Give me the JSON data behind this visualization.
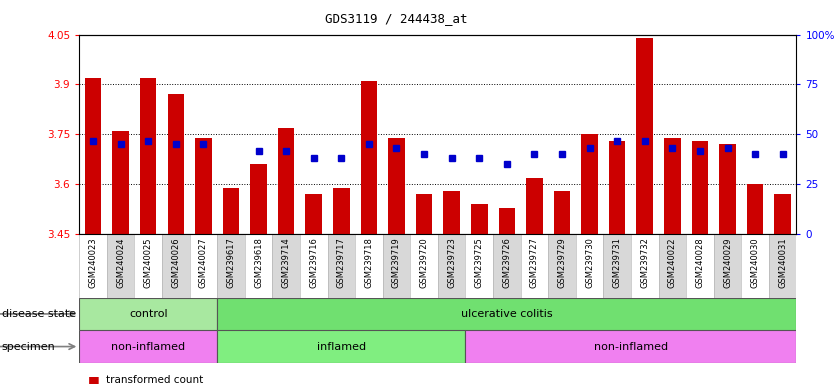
{
  "title": "GDS3119 / 244438_at",
  "samples": [
    "GSM240023",
    "GSM240024",
    "GSM240025",
    "GSM240026",
    "GSM240027",
    "GSM239617",
    "GSM239618",
    "GSM239714",
    "GSM239716",
    "GSM239717",
    "GSM239718",
    "GSM239719",
    "GSM239720",
    "GSM239723",
    "GSM239725",
    "GSM239726",
    "GSM239727",
    "GSM239729",
    "GSM239730",
    "GSM239731",
    "GSM239732",
    "GSM240022",
    "GSM240028",
    "GSM240029",
    "GSM240030",
    "GSM240031"
  ],
  "bar_values": [
    3.92,
    3.76,
    3.92,
    3.87,
    3.74,
    3.59,
    3.66,
    3.77,
    3.57,
    3.59,
    3.91,
    3.74,
    3.57,
    3.58,
    3.54,
    3.53,
    3.62,
    3.58,
    3.75,
    3.73,
    4.04,
    3.74,
    3.73,
    3.72,
    3.6,
    3.57
  ],
  "dot_values": [
    3.73,
    3.72,
    3.73,
    3.72,
    3.72,
    null,
    3.7,
    3.7,
    3.68,
    3.68,
    3.72,
    3.71,
    3.69,
    3.68,
    3.68,
    3.66,
    3.69,
    3.69,
    3.71,
    3.73,
    3.73,
    3.71,
    3.7,
    3.71,
    3.69,
    3.69
  ],
  "ymin": 3.45,
  "ymax": 4.05,
  "yticks": [
    3.45,
    3.6,
    3.75,
    3.9,
    4.05
  ],
  "ytick_labels": [
    "3.45",
    "3.6",
    "3.75",
    "3.9",
    "4.05"
  ],
  "grid_lines": [
    3.6,
    3.75,
    3.9
  ],
  "right_yticks": [
    0,
    25,
    50,
    75,
    100
  ],
  "right_ytick_labels": [
    "0",
    "25",
    "50",
    "75",
    "100%"
  ],
  "bar_color": "#cc0000",
  "dot_color": "#0000cc",
  "disease_state_groups": [
    {
      "label": "control",
      "start": 0,
      "end": 4,
      "color": "#a8e8a0"
    },
    {
      "label": "ulcerative colitis",
      "start": 5,
      "end": 25,
      "color": "#70e070"
    }
  ],
  "specimen_groups": [
    {
      "label": "non-inflamed",
      "start": 0,
      "end": 4,
      "color": "#f080f0"
    },
    {
      "label": "inflamed",
      "start": 5,
      "end": 13,
      "color": "#80ee80"
    },
    {
      "label": "non-inflamed",
      "start": 14,
      "end": 25,
      "color": "#f080f0"
    }
  ],
  "disease_label": "disease state",
  "specimen_label": "specimen",
  "sample_bg_colors": [
    "#d8d8d8",
    "#e8e8e8"
  ],
  "plot_bg": "#ffffff"
}
